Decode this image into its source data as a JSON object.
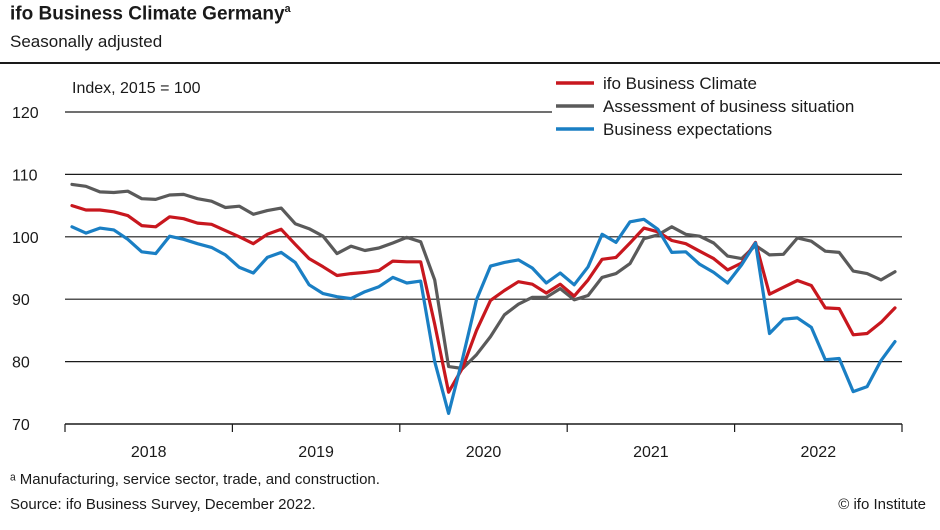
{
  "header": {
    "title": "ifo Business Climate Germany",
    "title_sup": "a",
    "subtitle": "Seasonally adjusted"
  },
  "footer": {
    "footnote": "ᵃ Manufacturing, service sector, trade, and construction.",
    "source": "Source: ifo Business Survey, December 2022.",
    "copyright": "© ifo Institute"
  },
  "colors": {
    "climate": "#c8171e",
    "situation": "#5a5a5a",
    "expectations": "#1a7fc4",
    "grid": "#1a1a1a"
  },
  "chart_data": {
    "type": "line",
    "ylabel": "Index, 2015 = 100",
    "ylim": [
      70,
      120
    ],
    "yticks": [
      70,
      80,
      90,
      100,
      110,
      120
    ],
    "year_labels": [
      "2018",
      "2019",
      "2020",
      "2021",
      "2022"
    ],
    "x": [
      "2018-01",
      "2018-02",
      "2018-03",
      "2018-04",
      "2018-05",
      "2018-06",
      "2018-07",
      "2018-08",
      "2018-09",
      "2018-10",
      "2018-11",
      "2018-12",
      "2019-01",
      "2019-02",
      "2019-03",
      "2019-04",
      "2019-05",
      "2019-06",
      "2019-07",
      "2019-08",
      "2019-09",
      "2019-10",
      "2019-11",
      "2019-12",
      "2020-01",
      "2020-02",
      "2020-03",
      "2020-04",
      "2020-05",
      "2020-06",
      "2020-07",
      "2020-08",
      "2020-09",
      "2020-10",
      "2020-11",
      "2020-12",
      "2021-01",
      "2021-02",
      "2021-03",
      "2021-04",
      "2021-05",
      "2021-06",
      "2021-07",
      "2021-08",
      "2021-09",
      "2021-10",
      "2021-11",
      "2021-12",
      "2022-01",
      "2022-02",
      "2022-03",
      "2022-04",
      "2022-05",
      "2022-06",
      "2022-07",
      "2022-08",
      "2022-09",
      "2022-10",
      "2022-11",
      "2022-12"
    ],
    "legend_position": "top-right",
    "grid": true,
    "series": [
      {
        "name": "ifo Business Climate",
        "color": "#c8171e",
        "values": [
          105.0,
          104.3,
          104.3,
          104.0,
          103.4,
          101.8,
          101.6,
          103.2,
          102.9,
          102.2,
          102.0,
          101.0,
          100.0,
          98.9,
          100.4,
          101.2,
          98.8,
          96.5,
          95.2,
          93.8,
          94.1,
          94.3,
          94.6,
          96.1,
          96.0,
          96.0,
          86.0,
          75.1,
          79.0,
          85.0,
          89.8,
          91.4,
          92.8,
          92.4,
          91.0,
          92.4,
          90.5,
          93.1,
          96.4,
          96.7,
          99.0,
          101.4,
          100.8,
          99.4,
          98.9,
          97.7,
          96.5,
          94.7,
          95.8,
          99.1,
          90.8,
          91.9,
          93.0,
          92.2,
          88.6,
          88.5,
          84.3,
          84.5,
          86.3,
          88.6
        ]
      },
      {
        "name": "Assessment of business situation",
        "color": "#5a5a5a",
        "values": [
          108.4,
          108.1,
          107.2,
          107.1,
          107.3,
          106.1,
          106.0,
          106.7,
          106.8,
          106.1,
          105.7,
          104.7,
          104.9,
          103.6,
          104.2,
          104.6,
          102.1,
          101.3,
          100.1,
          97.3,
          98.5,
          97.8,
          98.2,
          99.0,
          99.9,
          99.2,
          93.1,
          79.2,
          78.9,
          81.1,
          84.0,
          87.5,
          89.2,
          90.3,
          90.3,
          91.7,
          89.9,
          90.6,
          93.5,
          94.1,
          95.7,
          99.7,
          100.3,
          101.6,
          100.4,
          100.1,
          99.0,
          96.9,
          96.5,
          98.6,
          97.1,
          97.2,
          99.8,
          99.3,
          97.7,
          97.5,
          94.5,
          94.1,
          93.1,
          94.4
        ]
      },
      {
        "name": "Business expectations",
        "color": "#1a7fc4",
        "values": [
          101.6,
          100.6,
          101.4,
          101.1,
          99.6,
          97.6,
          97.3,
          100.1,
          99.6,
          98.9,
          98.3,
          97.1,
          95.1,
          94.2,
          96.7,
          97.5,
          95.9,
          92.3,
          90.9,
          90.4,
          90.1,
          91.2,
          92.0,
          93.5,
          92.6,
          92.9,
          80.0,
          71.7,
          80.5,
          89.9,
          95.3,
          95.9,
          96.3,
          95.0,
          92.6,
          94.2,
          92.3,
          95.2,
          100.4,
          99.1,
          102.4,
          102.8,
          101.2,
          97.5,
          97.6,
          95.6,
          94.3,
          92.6,
          95.5,
          99.0,
          84.5,
          86.8,
          87.0,
          85.5,
          80.3,
          80.5,
          75.2,
          76.0,
          80.2,
          83.2
        ]
      }
    ]
  }
}
